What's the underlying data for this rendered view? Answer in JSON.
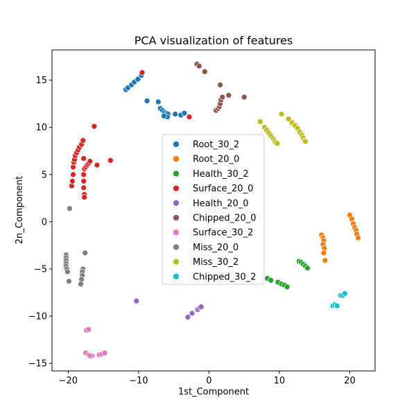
{
  "chart_data": {
    "type": "scatter",
    "title": "PCA visualization of features",
    "xlabel": "1st_Component",
    "ylabel": "2n_Component",
    "xlim": [
      -22.3,
      23.6
    ],
    "ylim": [
      -15.8,
      18.2
    ],
    "xticks": [
      -20,
      -10,
      0,
      10,
      20
    ],
    "yticks": [
      -15,
      -10,
      -5,
      0,
      5,
      10,
      15
    ],
    "grid": false,
    "legend_position": "center",
    "series": [
      {
        "name": "Root_30_2",
        "color": "#1f77b4",
        "points": [
          [
            -11.8,
            14.0
          ],
          [
            -11.5,
            14.2
          ],
          [
            -11.0,
            14.5
          ],
          [
            -10.6,
            14.8
          ],
          [
            -10.1,
            15.1
          ],
          [
            -9.6,
            15.5
          ],
          [
            -8.8,
            12.8
          ],
          [
            -7.2,
            12.7
          ],
          [
            -6.9,
            12.0
          ],
          [
            -6.6,
            11.8
          ],
          [
            -6.3,
            11.6
          ],
          [
            -6.0,
            11.5
          ],
          [
            -5.8,
            11.4
          ],
          [
            -5.9,
            11.1
          ],
          [
            -4.8,
            11.4
          ],
          [
            -4.0,
            11.3
          ],
          [
            -3.5,
            11.5
          ],
          [
            -6.4,
            11.2
          ]
        ]
      },
      {
        "name": "Root_20_0",
        "color": "#ff7f0e",
        "points": [
          [
            16.0,
            -1.4
          ],
          [
            16.2,
            -1.7
          ],
          [
            16.3,
            -2.0
          ],
          [
            16.2,
            -2.4
          ],
          [
            16.4,
            -2.8
          ],
          [
            16.3,
            -3.3
          ],
          [
            16.5,
            -4.1
          ],
          [
            20.0,
            0.7
          ],
          [
            20.3,
            0.3
          ],
          [
            20.5,
            -0.2
          ],
          [
            20.7,
            -0.6
          ],
          [
            20.9,
            -0.9
          ],
          [
            21.0,
            -1.3
          ],
          [
            21.2,
            -1.7
          ]
        ]
      },
      {
        "name": "Health_30_2",
        "color": "#2ca02c",
        "points": [
          [
            12.8,
            -4.2
          ],
          [
            13.1,
            -4.3
          ],
          [
            13.4,
            -4.5
          ],
          [
            13.7,
            -4.7
          ],
          [
            14.0,
            -4.9
          ],
          [
            8.3,
            -6.0
          ],
          [
            8.8,
            -6.2
          ],
          [
            9.8,
            -6.4
          ],
          [
            10.3,
            -6.6
          ],
          [
            10.7,
            -6.7
          ],
          [
            11.1,
            -6.9
          ]
        ]
      },
      {
        "name": "Surface_20_0",
        "color": "#d62728",
        "points": [
          [
            -9.5,
            15.8
          ],
          [
            -2.8,
            11.1
          ],
          [
            -19.5,
            3.8
          ],
          [
            -19.4,
            4.3
          ],
          [
            -19.3,
            5.0
          ],
          [
            -19.3,
            5.8
          ],
          [
            -19.2,
            6.3
          ],
          [
            -19.1,
            6.6
          ],
          [
            -19.0,
            7.0
          ],
          [
            -18.8,
            7.3
          ],
          [
            -18.6,
            7.6
          ],
          [
            -18.4,
            7.9
          ],
          [
            -18.1,
            8.2
          ],
          [
            -17.9,
            8.6
          ],
          [
            -17.8,
            6.7
          ],
          [
            -17.7,
            5.6
          ],
          [
            -17.8,
            5.0
          ],
          [
            -17.8,
            4.3
          ],
          [
            -17.8,
            3.6
          ],
          [
            -17.7,
            2.9
          ],
          [
            -17.7,
            2.6
          ],
          [
            -17.5,
            5.8
          ],
          [
            -17.3,
            6.0
          ],
          [
            -17.1,
            6.2
          ],
          [
            -16.9,
            6.4
          ],
          [
            -16.3,
            10.1
          ],
          [
            -15.9,
            6.0
          ],
          [
            -14.0,
            6.5
          ]
        ]
      },
      {
        "name": "Health_20_0",
        "color": "#9467bd",
        "points": [
          [
            -10.3,
            -8.4
          ],
          [
            -3.0,
            -10.1
          ],
          [
            -2.4,
            -9.7
          ],
          [
            -1.6,
            -9.3
          ],
          [
            -1.3,
            -9.1
          ],
          [
            -1.1,
            -9.0
          ]
        ]
      },
      {
        "name": "Chipped_20_0",
        "color": "#8c564b",
        "points": [
          [
            -1.7,
            16.7
          ],
          [
            -1.4,
            16.5
          ],
          [
            -0.6,
            15.9
          ],
          [
            1.0,
            11.8
          ],
          [
            1.3,
            12.0
          ],
          [
            1.5,
            12.2
          ],
          [
            1.6,
            12.5
          ],
          [
            1.7,
            12.9
          ],
          [
            1.9,
            13.2
          ],
          [
            1.6,
            14.5
          ],
          [
            2.8,
            13.4
          ],
          [
            5.0,
            13.2
          ]
        ]
      },
      {
        "name": "Surface_30_2",
        "color": "#e377c2",
        "points": [
          [
            -17.4,
            -11.5
          ],
          [
            -17.1,
            -11.4
          ],
          [
            -17.5,
            -13.9
          ],
          [
            -17.1,
            -14.1
          ],
          [
            -16.6,
            -14.2
          ],
          [
            -16.9,
            -14.2
          ],
          [
            -15.6,
            -14.1
          ],
          [
            -15.2,
            -14.0
          ],
          [
            -14.8,
            -13.9
          ]
        ]
      },
      {
        "name": "Miss_20_0",
        "color": "#7f7f7f",
        "points": [
          [
            -19.8,
            1.4
          ],
          [
            -20.3,
            -3.5
          ],
          [
            -20.3,
            -3.8
          ],
          [
            -20.3,
            -4.1
          ],
          [
            -20.3,
            -4.4
          ],
          [
            -20.3,
            -4.7
          ],
          [
            -20.2,
            -5.0
          ],
          [
            -20.1,
            -5.3
          ],
          [
            -19.9,
            -6.3
          ],
          [
            -17.6,
            -3.3
          ],
          [
            -17.9,
            -5.0
          ],
          [
            -18.0,
            -5.3
          ],
          [
            -18.0,
            -5.7
          ],
          [
            -18.1,
            -6.1
          ],
          [
            -18.2,
            -6.6
          ]
        ]
      },
      {
        "name": "Miss_30_2",
        "color": "#bcbd22",
        "points": [
          [
            7.3,
            10.6
          ],
          [
            7.9,
            10.0
          ],
          [
            8.2,
            9.7
          ],
          [
            8.5,
            9.4
          ],
          [
            8.8,
            9.1
          ],
          [
            9.1,
            8.8
          ],
          [
            9.3,
            8.6
          ],
          [
            9.5,
            8.4
          ],
          [
            9.7,
            8.3
          ],
          [
            10.3,
            11.4
          ],
          [
            11.3,
            10.9
          ],
          [
            11.8,
            10.5
          ],
          [
            12.2,
            10.2
          ],
          [
            12.6,
            9.9
          ],
          [
            12.9,
            9.5
          ],
          [
            13.2,
            9.2
          ],
          [
            13.4,
            8.9
          ],
          [
            13.6,
            8.6
          ],
          [
            13.7,
            8.5
          ]
        ]
      },
      {
        "name": "Chipped_30_2",
        "color": "#17becf",
        "points": [
          [
            17.6,
            -8.9
          ],
          [
            17.9,
            -8.8
          ],
          [
            18.2,
            -8.9
          ],
          [
            18.7,
            -7.8
          ],
          [
            19.0,
            -7.8
          ],
          [
            19.3,
            -7.6
          ]
        ]
      }
    ]
  }
}
